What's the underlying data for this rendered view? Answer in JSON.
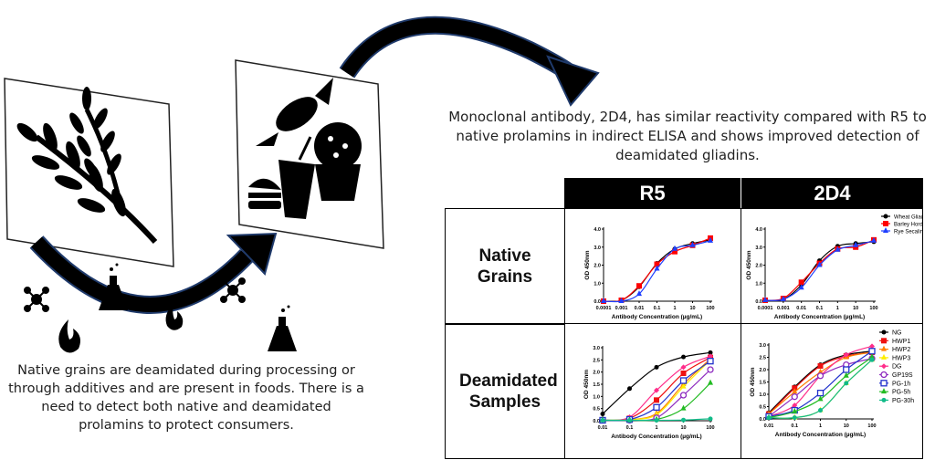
{
  "left_caption": "Native grains are deamidated during processing or through additives and are present in foods. There is a need to detect both native and deamidated prolamins to protect consumers.",
  "right_caption": "Monoclonal antibody, 2D4, has similar reactivity compared with R5 to native prolamins in indirect ELISA and shows improved detection of deamidated gliadins.",
  "table": {
    "columns": [
      "R5",
      "2D4"
    ],
    "rows": [
      "Native Grains",
      "Deamidated Samples"
    ]
  },
  "icons": [
    "wheat-icon",
    "candy-icon",
    "cupcake-icon",
    "burger-icon",
    "drink-icon",
    "flame-icon",
    "flask-icon",
    "molecule-icon",
    "curved-arrow-icon"
  ],
  "chart_data": [
    {
      "type": "line",
      "id": "native-r5",
      "xscale": "log",
      "xlabel": "Antibody Concentration (µg/mL)",
      "ylabel": "OD 450nm",
      "x": [
        0.0001,
        0.001,
        0.01,
        0.1,
        1,
        10,
        100
      ],
      "xticks": [
        "0.0001",
        "0.001",
        "0.01",
        "0.1",
        "1",
        "10",
        "100"
      ],
      "ylim": [
        0,
        4
      ],
      "yticks": [
        "0.0",
        "1.0",
        "2.0",
        "3.0",
        "4.0"
      ],
      "legend": false,
      "series": [
        {
          "name": "Wheat Gliadin",
          "color": "#000000",
          "marker": "circle",
          "values": [
            0,
            0.05,
            0.8,
            2.1,
            2.9,
            3.2,
            3.4
          ]
        },
        {
          "name": "Barley Hordein",
          "color": "#ff0000",
          "marker": "square",
          "values": [
            0,
            0.05,
            0.85,
            2.05,
            2.75,
            3.1,
            3.5
          ]
        },
        {
          "name": "Rye Secalin",
          "color": "#1f3fff",
          "marker": "triangle",
          "values": [
            0,
            0,
            0.4,
            1.8,
            2.9,
            3.1,
            3.35
          ]
        }
      ]
    },
    {
      "type": "line",
      "id": "native-2d4",
      "xscale": "log",
      "xlabel": "Antibody Concentration (µg/mL)",
      "ylabel": "OD 450nm",
      "x": [
        0.0001,
        0.001,
        0.01,
        0.1,
        1,
        10,
        100
      ],
      "xticks": [
        "0.0001",
        "0.001",
        "0.01",
        "0.1",
        "1",
        "10",
        "100"
      ],
      "ylim": [
        0,
        4
      ],
      "yticks": [
        "0.0",
        "1.0",
        "2.0",
        "3.0",
        "4.0"
      ],
      "legend": "right",
      "series": [
        {
          "name": "Wheat Gliadin",
          "color": "#000000",
          "marker": "circle",
          "values": [
            0.05,
            0.1,
            0.9,
            2.25,
            3.05,
            3.2,
            3.3
          ]
        },
        {
          "name": "Barley Hordein",
          "color": "#ff0000",
          "marker": "square",
          "values": [
            0.05,
            0.15,
            1.05,
            2.1,
            2.9,
            3.0,
            3.4
          ]
        },
        {
          "name": "Rye Secalin",
          "color": "#1f3fff",
          "marker": "triangle",
          "values": [
            0.05,
            0.1,
            0.75,
            2.0,
            2.85,
            3.1,
            3.35
          ]
        }
      ]
    },
    {
      "type": "line",
      "id": "deamidated-r5",
      "xscale": "log",
      "xlabel": "Antibody Concentration (µg/mL)",
      "ylabel": "OD 450nm",
      "x": [
        0.01,
        0.1,
        1,
        10,
        100
      ],
      "xticks": [
        "0.01",
        "0.1",
        "1",
        "10",
        "100"
      ],
      "ylim": [
        0,
        3
      ],
      "yticks": [
        "0.0",
        "0.5",
        "1.0",
        "1.5",
        "2.0",
        "2.5",
        "3.0"
      ],
      "legend": false,
      "series": [
        {
          "name": "NG",
          "color": "#000000",
          "marker": "circle",
          "values": [
            0.28,
            1.32,
            2.2,
            2.62,
            2.8
          ]
        },
        {
          "name": "HWP1",
          "color": "#ee1111",
          "marker": "square",
          "values": [
            0.02,
            0.1,
            0.85,
            1.95,
            2.6
          ]
        },
        {
          "name": "HWP2",
          "color": "#ff7f00",
          "marker": "triangle",
          "values": [
            0.02,
            0.05,
            0.3,
            1.5,
            2.55
          ]
        },
        {
          "name": "HWP3",
          "color": "#ffee00",
          "marker": "triangle",
          "values": [
            0.02,
            0.05,
            0.25,
            1.4,
            2.5
          ]
        },
        {
          "name": "DG",
          "color": "#ff2d8a",
          "marker": "diamond",
          "values": [
            0.02,
            0.15,
            1.25,
            2.2,
            2.65
          ]
        },
        {
          "name": "GP19S",
          "color": "#8e2bbf",
          "marker": "ocircle",
          "values": [
            0.02,
            0.02,
            0.12,
            1.05,
            2.1
          ]
        },
        {
          "name": "PG-1h",
          "color": "#2233cc",
          "marker": "osquare",
          "values": [
            0.02,
            0.05,
            0.55,
            1.65,
            2.45
          ]
        },
        {
          "name": "PG-5h",
          "color": "#22bb22",
          "marker": "triangle",
          "values": [
            0.02,
            0.02,
            0.05,
            0.5,
            1.55
          ]
        },
        {
          "name": "PG-30h",
          "color": "#11bb88",
          "marker": "circle",
          "values": [
            0.02,
            0.02,
            0.02,
            0.03,
            0.08
          ]
        }
      ]
    },
    {
      "type": "line",
      "id": "deamidated-2d4",
      "xscale": "log",
      "xlabel": "Antibody Concentration (µg/mL)",
      "ylabel": "OD 450nm",
      "x": [
        0.01,
        0.1,
        1,
        10,
        100
      ],
      "xticks": [
        "0.01",
        "0.1",
        "1",
        "10",
        "100"
      ],
      "ylim": [
        0,
        3
      ],
      "yticks": [
        "0.0",
        "0.5",
        "1.0",
        "1.5",
        "2.0",
        "2.5",
        "3.0"
      ],
      "legend": "right",
      "series": [
        {
          "name": "NG",
          "color": "#000000",
          "marker": "circle",
          "values": [
            0.25,
            1.3,
            2.2,
            2.6,
            2.75
          ]
        },
        {
          "name": "HWP1",
          "color": "#ee1111",
          "marker": "square",
          "values": [
            0.2,
            1.25,
            2.15,
            2.55,
            2.7
          ]
        },
        {
          "name": "HWP2",
          "color": "#ff7f00",
          "marker": "triangle",
          "values": [
            0.2,
            1.1,
            1.9,
            2.5,
            2.7
          ]
        },
        {
          "name": "HWP3",
          "color": "#ffee00",
          "marker": "triangle",
          "values": [
            0.05,
            0.05,
            0.35,
            1.45,
            2.4
          ]
        },
        {
          "name": "DG",
          "color": "#ff2d8a",
          "marker": "diamond",
          "values": [
            0.1,
            0.55,
            1.75,
            2.6,
            2.95
          ]
        },
        {
          "name": "GP19S",
          "color": "#8e2bbf",
          "marker": "ocircle",
          "values": [
            0.1,
            0.9,
            1.75,
            2.2,
            2.45
          ]
        },
        {
          "name": "PG-1h",
          "color": "#2233cc",
          "marker": "osquare",
          "values": [
            0.1,
            0.35,
            1.05,
            2.0,
            2.75
          ]
        },
        {
          "name": "PG-5h",
          "color": "#22bb22",
          "marker": "triangle",
          "values": [
            0.05,
            0.3,
            0.8,
            1.75,
            2.5
          ]
        },
        {
          "name": "PG-30h",
          "color": "#11bb88",
          "marker": "circle",
          "values": [
            0.05,
            0.05,
            0.35,
            1.45,
            2.4
          ]
        }
      ]
    }
  ]
}
